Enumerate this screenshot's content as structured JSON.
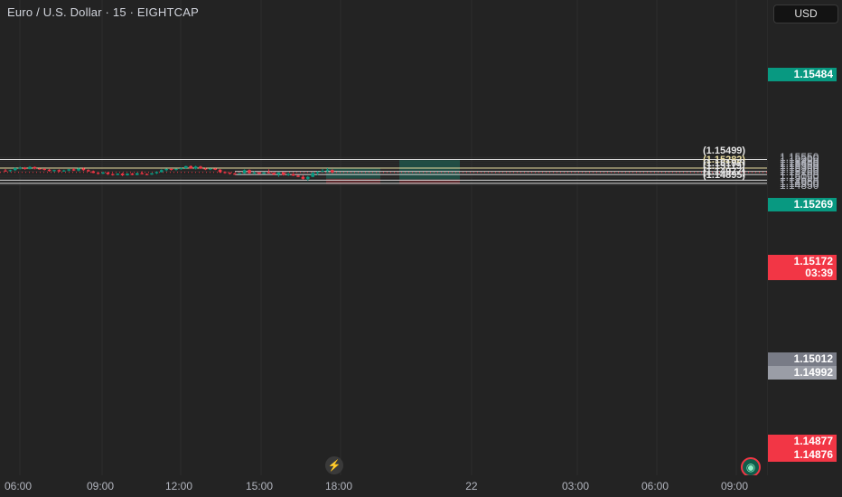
{
  "header": {
    "symbol": "Euro / U.S. Dollar · 15 · EIGHTCAP"
  },
  "currency_button": "USD",
  "price_axis": {
    "ticks": [
      "1.15550",
      "1.15500",
      "1.15450",
      "1.15400",
      "1.15350",
      "1.15300",
      "1.15250",
      "1.15200",
      "1.15100",
      "1.15050",
      "1.14950",
      "1.14900",
      "1.14850"
    ]
  },
  "time_axis": {
    "ticks": [
      "06:00",
      "09:00",
      "12:00",
      "15:00",
      "18:00",
      "22",
      "03:00",
      "06:00",
      "09:00"
    ]
  },
  "horizontal_lines": [
    {
      "label": "(1.15499)",
      "price": 1.15499,
      "color": "#d9d9d9"
    },
    {
      "label": "(1.15282)",
      "price": 1.15282,
      "color": "#e8dca0"
    },
    {
      "label": "(1.15197)",
      "price": 1.15197,
      "color": "#d9d9d9"
    },
    {
      "label": "(1.15119)",
      "price": 1.15119,
      "color": "#d9d9d9"
    },
    {
      "label": "(1.14977)",
      "price": 1.14977,
      "color": "#d9d9d9"
    },
    {
      "label": "(1.14895)",
      "price": 1.14895,
      "color": "#d9d9d9"
    }
  ],
  "price_tags": {
    "target_high": "1.15484",
    "target_mid": "1.15269",
    "last_price": "1.15172",
    "countdown": "03:39",
    "gray_a": "1.15012",
    "gray_b": "1.14992",
    "stop_a": "1.14877",
    "stop_b": "1.14876"
  },
  "colors": {
    "up": "#089981",
    "down": "#f23645",
    "background": "#232323"
  },
  "icons": {
    "event": "lightning-icon",
    "status": "globe-icon"
  },
  "chart_data": {
    "type": "candlestick",
    "symbol": "EURUSD",
    "timeframe": "15",
    "ylim": [
      1.1484,
      1.1557
    ],
    "candles": [
      [
        1.1522,
        1.1526,
        1.1519,
        1.1521
      ],
      [
        1.1521,
        1.1524,
        1.1518,
        1.1523
      ],
      [
        1.1523,
        1.153,
        1.1521,
        1.1528
      ],
      [
        1.1528,
        1.1532,
        1.1525,
        1.1529
      ],
      [
        1.1529,
        1.1531,
        1.1524,
        1.1526
      ],
      [
        1.1526,
        1.1533,
        1.1525,
        1.1531
      ],
      [
        1.1531,
        1.1532,
        1.1525,
        1.1527
      ],
      [
        1.1527,
        1.1528,
        1.1524,
        1.1526
      ],
      [
        1.1526,
        1.1528,
        1.1522,
        1.1524
      ],
      [
        1.1524,
        1.1526,
        1.1519,
        1.1521
      ],
      [
        1.1521,
        1.1524,
        1.1518,
        1.1523
      ],
      [
        1.1523,
        1.1525,
        1.1518,
        1.152
      ],
      [
        1.152,
        1.1524,
        1.1519,
        1.1522
      ],
      [
        1.1522,
        1.1526,
        1.152,
        1.1525
      ],
      [
        1.1525,
        1.1528,
        1.1521,
        1.1522
      ],
      [
        1.1522,
        1.1529,
        1.152,
        1.1527
      ],
      [
        1.1527,
        1.153,
        1.1521,
        1.1523
      ],
      [
        1.1523,
        1.1525,
        1.1519,
        1.152
      ],
      [
        1.152,
        1.1522,
        1.1515,
        1.1516
      ],
      [
        1.1516,
        1.1518,
        1.1512,
        1.1514
      ],
      [
        1.1514,
        1.1519,
        1.1513,
        1.1517
      ],
      [
        1.1517,
        1.1518,
        1.1511,
        1.1513
      ],
      [
        1.1513,
        1.1515,
        1.1509,
        1.1511
      ],
      [
        1.1511,
        1.1515,
        1.151,
        1.1514
      ],
      [
        1.1514,
        1.1516,
        1.1508,
        1.151
      ],
      [
        1.151,
        1.1515,
        1.1509,
        1.1514
      ],
      [
        1.1514,
        1.1516,
        1.151,
        1.1511
      ],
      [
        1.1511,
        1.1517,
        1.151,
        1.1515
      ],
      [
        1.1515,
        1.152,
        1.1512,
        1.1513
      ],
      [
        1.1513,
        1.1515,
        1.151,
        1.1512
      ],
      [
        1.1512,
        1.1516,
        1.1511,
        1.1515
      ],
      [
        1.1515,
        1.152,
        1.1513,
        1.1518
      ],
      [
        1.1518,
        1.1525,
        1.1517,
        1.1523
      ],
      [
        1.1523,
        1.1527,
        1.152,
        1.1526
      ],
      [
        1.1526,
        1.1528,
        1.1522,
        1.1524
      ],
      [
        1.1524,
        1.1527,
        1.1522,
        1.1526
      ],
      [
        1.1526,
        1.1529,
        1.1524,
        1.1528
      ],
      [
        1.1528,
        1.1534,
        1.1526,
        1.1533
      ],
      [
        1.1533,
        1.1535,
        1.1526,
        1.1527
      ],
      [
        1.1527,
        1.1534,
        1.1525,
        1.1532
      ],
      [
        1.1532,
        1.1534,
        1.1526,
        1.1527
      ],
      [
        1.1527,
        1.1529,
        1.1523,
        1.1525
      ],
      [
        1.1525,
        1.1528,
        1.1523,
        1.1527
      ],
      [
        1.1527,
        1.1528,
        1.1523,
        1.1524
      ],
      [
        1.1524,
        1.1526,
        1.1516,
        1.1518
      ],
      [
        1.1518,
        1.152,
        1.1514,
        1.1516
      ],
      [
        1.1516,
        1.1518,
        1.1512,
        1.1514
      ],
      [
        1.1514,
        1.1516,
        1.1511,
        1.1513
      ],
      [
        1.1513,
        1.1516,
        1.1512,
        1.1515
      ],
      [
        1.1515,
        1.1525,
        1.1514,
        1.1523
      ],
      [
        1.1523,
        1.1525,
        1.1514,
        1.1515
      ],
      [
        1.1515,
        1.152,
        1.1512,
        1.1517
      ],
      [
        1.1517,
        1.1518,
        1.1512,
        1.1514
      ],
      [
        1.1514,
        1.1518,
        1.1513,
        1.1517
      ],
      [
        1.1517,
        1.1525,
        1.1515,
        1.1516
      ],
      [
        1.1516,
        1.1517,
        1.151,
        1.1512
      ],
      [
        1.1512,
        1.1518,
        1.1506,
        1.1517
      ],
      [
        1.1517,
        1.1518,
        1.1509,
        1.1511
      ],
      [
        1.1511,
        1.1516,
        1.1508,
        1.1513
      ],
      [
        1.1513,
        1.1515,
        1.1508,
        1.1509
      ],
      [
        1.1509,
        1.1511,
        1.1505,
        1.1506
      ],
      [
        1.1506,
        1.151,
        1.1499,
        1.1501
      ],
      [
        1.1501,
        1.1508,
        1.1496,
        1.1506
      ],
      [
        1.1506,
        1.1518,
        1.1505,
        1.1516
      ],
      [
        1.1516,
        1.152,
        1.151,
        1.1519
      ],
      [
        1.1519,
        1.1526,
        1.1517,
        1.1521
      ],
      [
        1.1521,
        1.1528,
        1.1518,
        1.1523
      ],
      [
        1.1523,
        1.1525,
        1.1515,
        1.15172
      ]
    ],
    "positions": [
      {
        "name": "position-1",
        "entry": 1.15012,
        "target": 1.15269,
        "stop": 1.14877
      },
      {
        "name": "position-2",
        "entry": 1.14992,
        "target": 1.15484,
        "stop": 1.14876
      }
    ]
  }
}
